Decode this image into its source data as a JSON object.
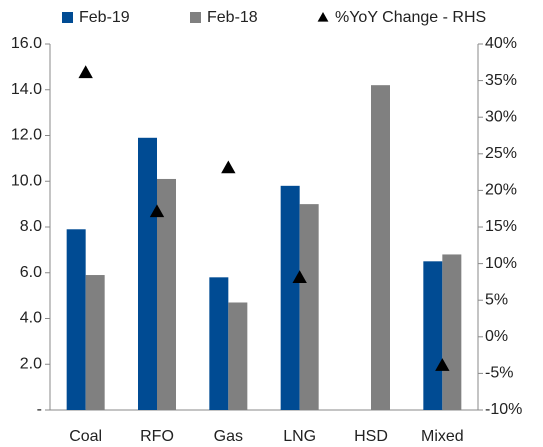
{
  "chart_data": {
    "type": "bar",
    "categories": [
      "Coal",
      "RFO",
      "Gas",
      "LNG",
      "HSD",
      "Mixed"
    ],
    "series": [
      {
        "name": "Feb-19",
        "color": "#004b93",
        "values": [
          7.9,
          11.9,
          5.8,
          9.8,
          null,
          6.5
        ]
      },
      {
        "name": "Feb-18",
        "color": "#808080",
        "values": [
          5.9,
          10.1,
          4.7,
          9.0,
          14.2,
          6.8
        ]
      },
      {
        "name": "%YoY Change - RHS",
        "color": "#000000",
        "type": "scatter",
        "axis": "y2",
        "values": [
          36,
          17,
          23,
          8,
          null,
          -4
        ]
      }
    ],
    "ylim": [
      0,
      16
    ],
    "yticks": [
      {
        "value": 0,
        "label": "-"
      },
      {
        "value": 2,
        "label": "2.0"
      },
      {
        "value": 4,
        "label": "4.0"
      },
      {
        "value": 6,
        "label": "6.0"
      },
      {
        "value": 8,
        "label": "8.0"
      },
      {
        "value": 10,
        "label": "10.0"
      },
      {
        "value": 12,
        "label": "12.0"
      },
      {
        "value": 14,
        "label": "14.0"
      },
      {
        "value": 16,
        "label": "16.0"
      }
    ],
    "y2lim": [
      -10,
      40
    ],
    "y2ticks": [
      {
        "value": -10,
        "label": "-10%"
      },
      {
        "value": -5,
        "label": "-5%"
      },
      {
        "value": 0,
        "label": "0%"
      },
      {
        "value": 5,
        "label": "5%"
      },
      {
        "value": 10,
        "label": "10%"
      },
      {
        "value": 15,
        "label": "15%"
      },
      {
        "value": 20,
        "label": "20%"
      },
      {
        "value": 25,
        "label": "25%"
      },
      {
        "value": 30,
        "label": "30%"
      },
      {
        "value": 35,
        "label": "35%"
      },
      {
        "value": 40,
        "label": "40%"
      }
    ],
    "legend": "top"
  }
}
